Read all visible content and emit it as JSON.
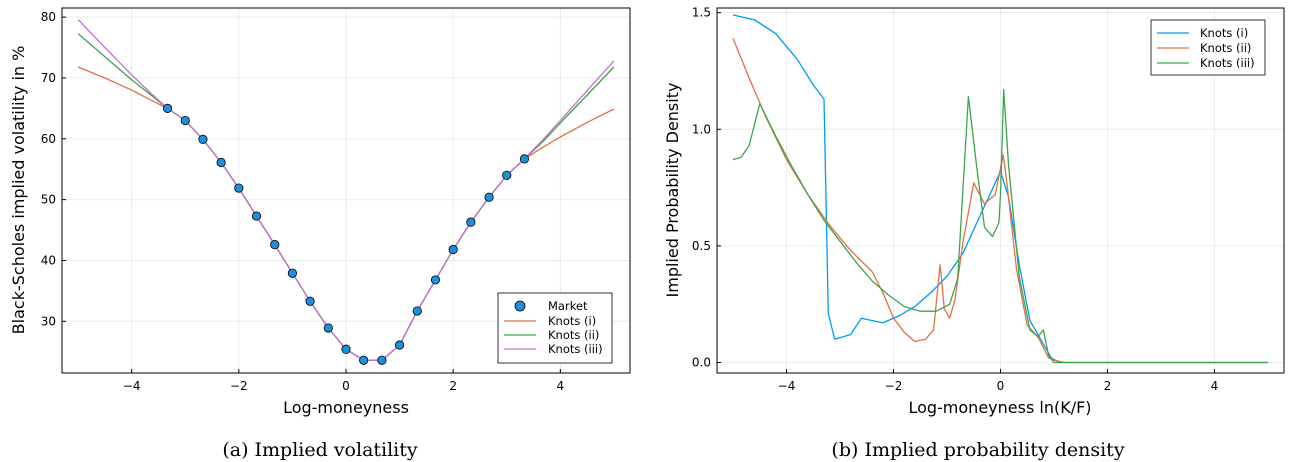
{
  "colors": {
    "market": "#1f8fdc",
    "series1": "#009af9",
    "series2": "#e26f46",
    "series3": "#3da44d",
    "series4": "#c271d2",
    "grid": "#ebebeb"
  },
  "chart_data": [
    {
      "type": "line",
      "caption": "(a)  Implied volatility",
      "xlabel": "Log-moneyness",
      "ylabel": "Black-Scholes implied volatility in %",
      "xlim": [
        -5.3,
        5.3
      ],
      "ylim": [
        21.5,
        81.5
      ],
      "xticks": [
        -4,
        -2,
        0,
        2,
        4
      ],
      "xtick_labels": [
        "−4",
        "−2",
        "0",
        "2",
        "4"
      ],
      "yticks": [
        30,
        40,
        50,
        60,
        70,
        80
      ],
      "ytick_labels": [
        "30",
        "40",
        "50",
        "60",
        "70",
        "80"
      ],
      "legend_position": "bottom-right",
      "scatter": {
        "name": "Market",
        "x": [
          -3.33,
          -3.0,
          -2.67,
          -2.33,
          -2.0,
          -1.67,
          -1.33,
          -1.0,
          -0.67,
          -0.33,
          0.0,
          0.33,
          0.67,
          1.0,
          1.33,
          1.67,
          2.0,
          2.33,
          2.67,
          3.0,
          3.33
        ],
        "y": [
          65.0,
          63.0,
          59.9,
          56.1,
          51.9,
          47.3,
          42.6,
          37.9,
          33.3,
          28.9,
          25.4,
          23.6,
          23.6,
          26.1,
          31.7,
          36.8,
          41.8,
          46.3,
          50.4,
          54.0,
          56.7
        ]
      },
      "series": [
        {
          "name": "Knots (i)",
          "color_key": "series2",
          "x": [
            -5.0,
            -4.5,
            -4.0,
            -3.67,
            -3.33,
            -3.0,
            -2.67,
            -2.33,
            -2.0,
            -1.67,
            -1.33,
            -1.0,
            -0.67,
            -0.33,
            0.0,
            0.33,
            0.67,
            1.0,
            1.33,
            1.67,
            2.0,
            2.33,
            2.67,
            3.0,
            3.33,
            3.67,
            4.0,
            4.5,
            5.0
          ],
          "y": [
            71.8,
            70.0,
            68.0,
            66.5,
            65.0,
            63.0,
            59.9,
            56.1,
            51.9,
            47.3,
            42.6,
            37.9,
            33.3,
            28.9,
            25.4,
            23.6,
            23.6,
            26.1,
            31.7,
            36.8,
            41.8,
            46.3,
            50.4,
            54.0,
            56.7,
            58.6,
            60.3,
            62.7,
            64.9
          ]
        },
        {
          "name": "Knots (ii)",
          "color_key": "series3",
          "x": [
            -5.0,
            -4.5,
            -4.0,
            -3.67,
            -3.33,
            -3.0,
            -2.67,
            -2.33,
            -2.0,
            -1.67,
            -1.33,
            -1.0,
            -0.67,
            -0.33,
            0.0,
            0.33,
            0.67,
            1.0,
            1.33,
            1.67,
            2.0,
            2.33,
            2.67,
            3.0,
            3.33,
            3.67,
            4.0,
            4.5,
            5.0
          ],
          "y": [
            77.3,
            73.5,
            69.7,
            67.4,
            65.0,
            63.0,
            59.9,
            56.1,
            51.9,
            47.3,
            42.6,
            37.9,
            33.3,
            28.9,
            25.4,
            23.6,
            23.6,
            26.1,
            31.7,
            36.8,
            41.8,
            46.3,
            50.4,
            54.0,
            56.7,
            59.5,
            62.6,
            67.2,
            71.8
          ]
        },
        {
          "name": "Knots (iii)",
          "color_key": "series4",
          "x": [
            -5.0,
            -4.5,
            -4.0,
            -3.67,
            -3.33,
            -3.0,
            -2.67,
            -2.33,
            -2.0,
            -1.67,
            -1.33,
            -1.0,
            -0.67,
            -0.33,
            0.0,
            0.33,
            0.67,
            1.0,
            1.33,
            1.67,
            2.0,
            2.33,
            2.67,
            3.0,
            3.33,
            3.67,
            4.0,
            4.5,
            5.0
          ],
          "y": [
            79.6,
            75.0,
            70.5,
            67.7,
            65.0,
            63.0,
            59.9,
            56.1,
            51.9,
            47.3,
            42.6,
            37.9,
            33.3,
            28.9,
            25.4,
            23.6,
            23.6,
            26.1,
            31.7,
            36.8,
            41.8,
            46.3,
            50.4,
            54.0,
            56.7,
            59.8,
            63.0,
            67.9,
            72.8
          ]
        }
      ]
    },
    {
      "type": "line",
      "caption": "(b)  Implied probability density",
      "xlabel": "Log-moneyness ln(K/F)",
      "ylabel": "Implied Probability Density",
      "xlim": [
        -5.3,
        5.3
      ],
      "ylim": [
        -0.045,
        1.52
      ],
      "xticks": [
        -4,
        -2,
        0,
        2,
        4
      ],
      "xtick_labels": [
        "−4",
        "−2",
        "0",
        "2",
        "4"
      ],
      "yticks": [
        0.0,
        0.5,
        1.0,
        1.5
      ],
      "ytick_labels": [
        "0.0",
        "0.5",
        "1.0",
        "1.5"
      ],
      "legend_position": "top-right",
      "series": [
        {
          "name": "Knots (i)",
          "color_key": "series1",
          "x": [
            -5.0,
            -4.6,
            -4.2,
            -3.8,
            -3.5,
            -3.3,
            -3.22,
            -3.1,
            -2.8,
            -2.6,
            -2.2,
            -1.9,
            -1.6,
            -1.3,
            -1.0,
            -0.7,
            -0.4,
            -0.2,
            0.0,
            0.15,
            0.35,
            0.55,
            0.75,
            0.95,
            1.1,
            1.5,
            5.0
          ],
          "y": [
            1.49,
            1.47,
            1.41,
            1.3,
            1.19,
            1.13,
            0.21,
            0.1,
            0.12,
            0.19,
            0.17,
            0.2,
            0.24,
            0.3,
            0.37,
            0.47,
            0.62,
            0.72,
            0.82,
            0.71,
            0.42,
            0.18,
            0.1,
            0.02,
            0.0,
            0.0,
            0.0
          ]
        },
        {
          "name": "Knots (ii)",
          "color_key": "series2",
          "x": [
            -5.0,
            -4.7,
            -4.4,
            -4.0,
            -3.6,
            -3.2,
            -2.8,
            -2.4,
            -2.2,
            -2.0,
            -1.8,
            -1.6,
            -1.4,
            -1.25,
            -1.13,
            -1.05,
            -0.95,
            -0.85,
            -0.7,
            -0.5,
            -0.3,
            -0.1,
            0.05,
            0.12,
            0.3,
            0.5,
            0.7,
            0.9,
            1.0,
            1.2,
            5.0
          ],
          "y": [
            1.39,
            1.22,
            1.06,
            0.87,
            0.72,
            0.59,
            0.48,
            0.39,
            0.3,
            0.19,
            0.13,
            0.09,
            0.1,
            0.14,
            0.42,
            0.23,
            0.19,
            0.27,
            0.52,
            0.77,
            0.68,
            0.72,
            0.89,
            0.77,
            0.4,
            0.16,
            0.11,
            0.02,
            0.01,
            0.0,
            0.0
          ]
        },
        {
          "name": "Knots (iii)",
          "color_key": "series3",
          "x": [
            -5.0,
            -4.85,
            -4.7,
            -4.5,
            -4.2,
            -3.9,
            -3.6,
            -3.3,
            -3.0,
            -2.7,
            -2.4,
            -2.1,
            -1.8,
            -1.5,
            -1.2,
            -0.95,
            -0.8,
            -0.6,
            -0.45,
            -0.3,
            -0.15,
            -0.03,
            0.0,
            0.06,
            0.15,
            0.35,
            0.55,
            0.7,
            0.8,
            0.9,
            1.0,
            1.2,
            5.0
          ],
          "y": [
            0.87,
            0.88,
            0.93,
            1.11,
            0.97,
            0.84,
            0.72,
            0.61,
            0.52,
            0.43,
            0.35,
            0.29,
            0.24,
            0.22,
            0.22,
            0.25,
            0.36,
            1.14,
            0.85,
            0.58,
            0.54,
            0.6,
            0.72,
            1.17,
            0.85,
            0.37,
            0.14,
            0.11,
            0.14,
            0.03,
            0.0,
            0.0,
            0.0
          ]
        }
      ]
    }
  ]
}
